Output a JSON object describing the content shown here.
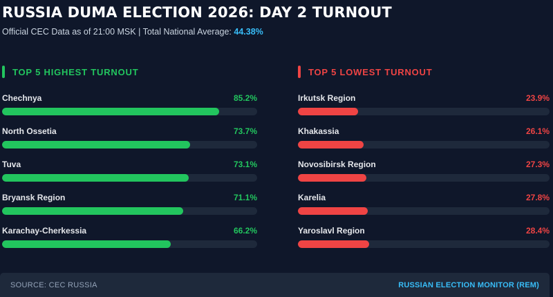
{
  "header": {
    "title": "RUSSIA DUMA ELECTION 2026: DAY 2 TURNOUT",
    "subtitle_prefix": "Official CEC Data as of 21:00 MSK | Total National Average: ",
    "national_average": "44.38%"
  },
  "colors": {
    "background": "#0f172a",
    "track": "#1e293b",
    "highest": "#22c55e",
    "lowest": "#ef4444",
    "accent": "#38bdf8"
  },
  "chart_data": [
    {
      "type": "bar",
      "title": "TOP 5 HIGHEST TURNOUT",
      "orientation": "horizontal",
      "unit": "%",
      "xlim": [
        0,
        100
      ],
      "categories": [
        "Chechnya",
        "North Ossetia",
        "Tuva",
        "Bryansk Region",
        "Karachay-Cherkessia"
      ],
      "values": [
        85.2,
        73.7,
        73.1,
        71.1,
        66.2
      ],
      "value_labels": [
        "85.2%",
        "73.7%",
        "73.1%",
        "71.1%",
        "66.2%"
      ]
    },
    {
      "type": "bar",
      "title": "TOP 5 LOWEST TURNOUT",
      "orientation": "horizontal",
      "unit": "%",
      "xlim": [
        0,
        100
      ],
      "categories": [
        "Irkutsk Region",
        "Khakassia",
        "Novosibirsk Region",
        "Karelia",
        "Yaroslavl Region"
      ],
      "values": [
        23.9,
        26.1,
        27.3,
        27.8,
        28.4
      ],
      "value_labels": [
        "23.9%",
        "26.1%",
        "27.3%",
        "27.8%",
        "28.4%"
      ]
    }
  ],
  "footer": {
    "source": "SOURCE: CEC RUSSIA",
    "brand": "RUSSIAN ELECTION MONITOR (REM)"
  }
}
